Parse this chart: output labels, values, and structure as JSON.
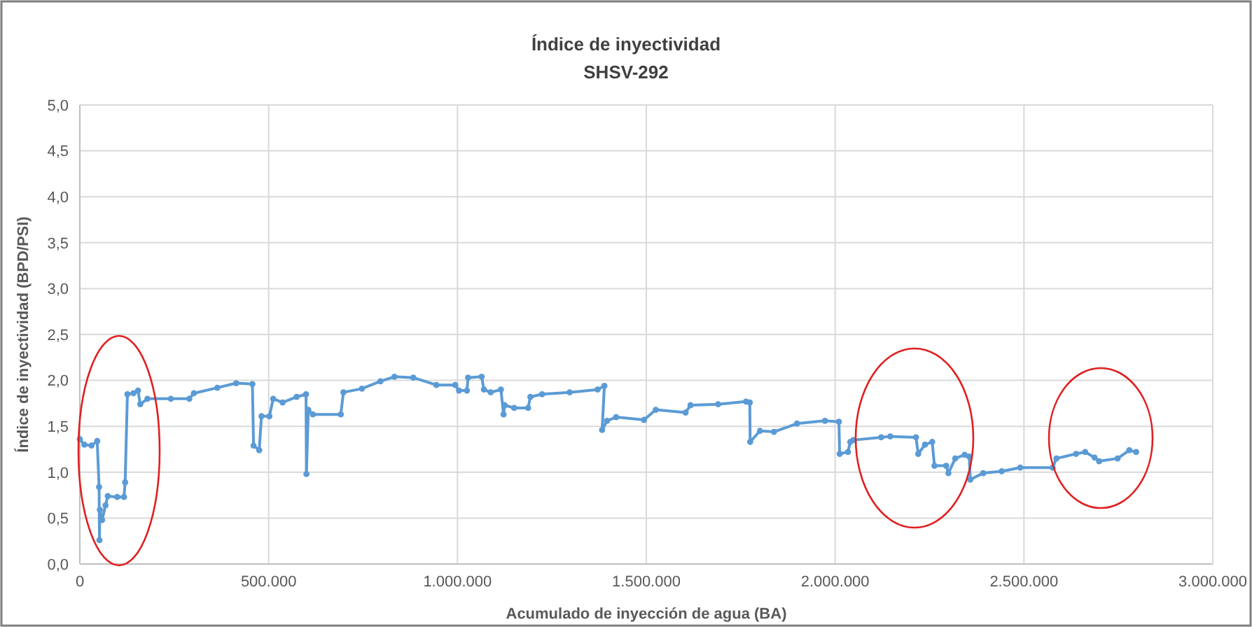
{
  "chart_data": {
    "type": "line",
    "title": "Índice de inyectividad",
    "subtitle": "SHSV-292",
    "xlabel": "Acumulado de inyección de agua (BA)",
    "ylabel": "Índice de inyectividad (BPD/PSI)",
    "xlim": [
      0,
      3000000
    ],
    "xticks": [
      {
        "value": 0,
        "label": "0"
      },
      {
        "value": 500000,
        "label": "500.000"
      },
      {
        "value": 1000000,
        "label": "1.000.000"
      },
      {
        "value": 1500000,
        "label": "1.500.000"
      },
      {
        "value": 2000000,
        "label": "2.000.000"
      },
      {
        "value": 2500000,
        "label": "2.500.000"
      },
      {
        "value": 3000000,
        "label": "3.000.000"
      }
    ],
    "ylim": [
      0,
      5
    ],
    "yticks": [
      {
        "value": 0,
        "label": "0,0"
      },
      {
        "value": 0.5,
        "label": "0,5"
      },
      {
        "value": 1,
        "label": "1,0"
      },
      {
        "value": 1.5,
        "label": "1,5"
      },
      {
        "value": 2,
        "label": "2,0"
      },
      {
        "value": 2.5,
        "label": "2,5"
      },
      {
        "value": 3,
        "label": "3,0"
      },
      {
        "value": 3.5,
        "label": "3,5"
      },
      {
        "value": 4,
        "label": "4,0"
      },
      {
        "value": 4.5,
        "label": "4,5"
      },
      {
        "value": 5,
        "label": "5,0"
      }
    ],
    "grid": true,
    "marker": "circle",
    "line_style": "solid",
    "series": [
      {
        "color": "#5b9bd5",
        "x": [
          0,
          12000,
          31000,
          46000,
          51000,
          52000,
          53000,
          59000,
          68000,
          74000,
          99000,
          117000,
          120000,
          126000,
          142000,
          154000,
          160000,
          179000,
          241000,
          290000,
          302000,
          364000,
          414000,
          457000,
          460000,
          475000,
          481000,
          502000,
          512000,
          537000,
          574000,
          599000,
          600000,
          605000,
          617000,
          691000,
          698000,
          747000,
          796000,
          833000,
          883000,
          944000,
          994000,
          1004000,
          1025000,
          1028000,
          1064000,
          1070000,
          1088000,
          1115000,
          1122000,
          1125000,
          1150000,
          1187000,
          1193000,
          1224000,
          1297000,
          1371000,
          1389000,
          1383000,
          1396000,
          1420000,
          1494000,
          1525000,
          1604000,
          1617000,
          1690000,
          1764000,
          1774000,
          1775000,
          1801000,
          1838000,
          1899000,
          1973000,
          2010000,
          2012000,
          2034000,
          2040000,
          2048000,
          2122000,
          2146000,
          2214000,
          2220000,
          2238000,
          2257000,
          2263000,
          2294000,
          2300000,
          2318000,
          2343000,
          2355000,
          2358000,
          2392000,
          2441000,
          2490000,
          2576000,
          2586000,
          2638000,
          2662000,
          2687000,
          2699000,
          2748000,
          2779000,
          2797000
        ],
        "values": [
          1.36,
          1.3,
          1.29,
          1.34,
          0.84,
          0.26,
          0.59,
          0.48,
          0.64,
          0.74,
          0.73,
          0.73,
          0.89,
          1.85,
          1.86,
          1.89,
          1.74,
          1.8,
          1.8,
          1.8,
          1.86,
          1.92,
          1.97,
          1.96,
          1.29,
          1.24,
          1.61,
          1.61,
          1.8,
          1.76,
          1.82,
          1.85,
          0.98,
          1.68,
          1.63,
          1.63,
          1.87,
          1.91,
          1.99,
          2.04,
          2.03,
          1.95,
          1.95,
          1.89,
          1.89,
          2.03,
          2.04,
          1.9,
          1.87,
          1.9,
          1.63,
          1.73,
          1.7,
          1.7,
          1.82,
          1.85,
          1.87,
          1.9,
          1.94,
          1.46,
          1.56,
          1.6,
          1.57,
          1.68,
          1.65,
          1.73,
          1.74,
          1.77,
          1.76,
          1.33,
          1.45,
          1.44,
          1.53,
          1.56,
          1.55,
          1.2,
          1.22,
          1.33,
          1.35,
          1.38,
          1.39,
          1.38,
          1.2,
          1.3,
          1.33,
          1.07,
          1.07,
          0.99,
          1.15,
          1.19,
          1.17,
          0.92,
          0.99,
          1.01,
          1.05,
          1.05,
          1.15,
          1.2,
          1.22,
          1.16,
          1.12,
          1.15,
          1.24,
          1.22
        ]
      }
    ]
  }
}
